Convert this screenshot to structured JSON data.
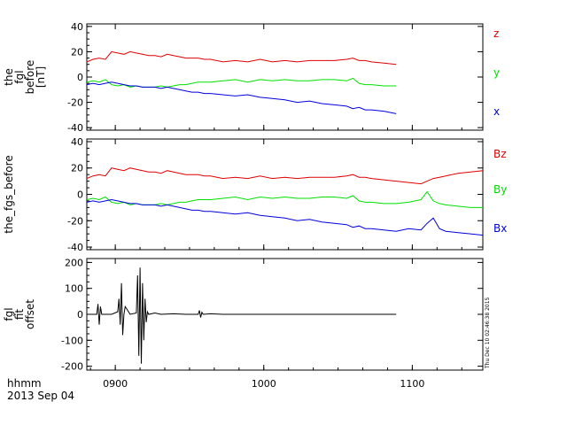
{
  "chart_data": [
    {
      "type": "line",
      "ytitle": [
        "the",
        "fgl",
        "before",
        "[nT]"
      ],
      "ylim": [
        -42,
        42
      ],
      "yticks": [
        40,
        20,
        0,
        -20,
        -40
      ],
      "series": [
        {
          "name": "z",
          "color": "#e00000",
          "x": [
            0,
            5,
            10,
            15,
            20,
            25,
            30,
            35,
            40,
            45,
            50,
            55,
            60,
            65,
            70,
            75,
            80,
            85,
            90,
            95,
            100,
            110,
            120,
            130,
            140,
            150,
            160,
            170,
            180,
            190,
            200,
            210,
            215,
            220,
            225,
            230,
            240,
            250
          ],
          "y": [
            12,
            14,
            15,
            14,
            20,
            19,
            18,
            20,
            19,
            18,
            17,
            17,
            16,
            18,
            17,
            16,
            15,
            15,
            15,
            14,
            14,
            12,
            13,
            12,
            14,
            12,
            13,
            12,
            13,
            13,
            13,
            14,
            15,
            13,
            13,
            12,
            11,
            10
          ]
        },
        {
          "name": "y",
          "color": "#00e000",
          "x": [
            0,
            5,
            10,
            15,
            20,
            25,
            30,
            35,
            40,
            45,
            50,
            55,
            60,
            65,
            70,
            75,
            80,
            85,
            90,
            95,
            100,
            110,
            120,
            130,
            140,
            150,
            160,
            170,
            180,
            190,
            200,
            210,
            215,
            220,
            225,
            230,
            240,
            250
          ],
          "y": [
            -4,
            -3,
            -4,
            -2,
            -6,
            -7,
            -6,
            -8,
            -7,
            -8,
            -8,
            -8,
            -7,
            -8,
            -7,
            -6,
            -6,
            -5,
            -4,
            -4,
            -4,
            -3,
            -2,
            -4,
            -2,
            -3,
            -2,
            -3,
            -3,
            -2,
            -2,
            -3,
            -1,
            -5,
            -6,
            -6,
            -7,
            -7
          ]
        },
        {
          "name": "x",
          "color": "#0000e0",
          "x": [
            0,
            5,
            10,
            15,
            20,
            25,
            30,
            35,
            40,
            45,
            50,
            55,
            60,
            65,
            70,
            75,
            80,
            85,
            90,
            95,
            100,
            110,
            120,
            130,
            140,
            150,
            160,
            170,
            180,
            190,
            200,
            210,
            215,
            220,
            225,
            230,
            240,
            250
          ],
          "y": [
            -6,
            -5,
            -6,
            -5,
            -4,
            -5,
            -6,
            -7,
            -7,
            -8,
            -8,
            -8,
            -9,
            -8,
            -9,
            -10,
            -11,
            -12,
            -12,
            -13,
            -13,
            -14,
            -15,
            -14,
            -16,
            -17,
            -18,
            -20,
            -19,
            -21,
            -22,
            -23,
            -25,
            -24,
            -26,
            -26,
            -27,
            -29
          ]
        }
      ]
    },
    {
      "type": "line",
      "ytitle": [
        "the_fgs_before"
      ],
      "ylim": [
        -42,
        42
      ],
      "yticks": [
        40,
        20,
        0,
        -20,
        -40
      ],
      "series": [
        {
          "name": "Bz",
          "color": "#e00000",
          "x": [
            0,
            5,
            10,
            15,
            20,
            25,
            30,
            35,
            40,
            45,
            50,
            55,
            60,
            65,
            70,
            75,
            80,
            85,
            90,
            95,
            100,
            110,
            120,
            130,
            140,
            150,
            160,
            170,
            180,
            190,
            200,
            210,
            215,
            220,
            225,
            230,
            240,
            250,
            260,
            270,
            275,
            280,
            285,
            290,
            300,
            310,
            320
          ],
          "y": [
            12,
            14,
            15,
            14,
            20,
            19,
            18,
            20,
            19,
            18,
            17,
            17,
            16,
            18,
            17,
            16,
            15,
            15,
            15,
            14,
            14,
            12,
            13,
            12,
            14,
            12,
            13,
            12,
            13,
            13,
            13,
            14,
            15,
            13,
            13,
            12,
            11,
            10,
            9,
            8,
            10,
            12,
            13,
            14,
            16,
            17,
            18
          ]
        },
        {
          "name": "By",
          "color": "#00e000",
          "x": [
            0,
            5,
            10,
            15,
            20,
            25,
            30,
            35,
            40,
            45,
            50,
            55,
            60,
            65,
            70,
            75,
            80,
            85,
            90,
            95,
            100,
            110,
            120,
            130,
            140,
            150,
            160,
            170,
            180,
            190,
            200,
            210,
            215,
            220,
            225,
            230,
            240,
            250,
            260,
            270,
            275,
            280,
            285,
            290,
            300,
            310,
            320
          ],
          "y": [
            -4,
            -3,
            -4,
            -2,
            -6,
            -7,
            -6,
            -8,
            -7,
            -8,
            -8,
            -8,
            -7,
            -8,
            -7,
            -6,
            -6,
            -5,
            -4,
            -4,
            -4,
            -3,
            -2,
            -4,
            -2,
            -3,
            -2,
            -3,
            -3,
            -2,
            -2,
            -3,
            -1,
            -5,
            -6,
            -6,
            -7,
            -7,
            -6,
            -4,
            2,
            -5,
            -7,
            -8,
            -9,
            -10,
            -10
          ]
        },
        {
          "name": "Bx",
          "color": "#0000e0",
          "x": [
            0,
            5,
            10,
            15,
            20,
            25,
            30,
            35,
            40,
            45,
            50,
            55,
            60,
            65,
            70,
            75,
            80,
            85,
            90,
            95,
            100,
            110,
            120,
            130,
            140,
            150,
            160,
            170,
            180,
            190,
            200,
            210,
            215,
            220,
            225,
            230,
            240,
            250,
            260,
            270,
            275,
            280,
            285,
            290,
            300,
            310,
            320
          ],
          "y": [
            -6,
            -5,
            -6,
            -5,
            -4,
            -5,
            -6,
            -7,
            -7,
            -8,
            -8,
            -8,
            -9,
            -8,
            -9,
            -10,
            -11,
            -12,
            -12,
            -13,
            -13,
            -14,
            -15,
            -14,
            -16,
            -17,
            -18,
            -20,
            -19,
            -21,
            -22,
            -23,
            -25,
            -24,
            -26,
            -26,
            -27,
            -28,
            -26,
            -27,
            -22,
            -18,
            -26,
            -28,
            -29,
            -30,
            -31
          ]
        }
      ]
    },
    {
      "type": "line",
      "ytitle": [
        "fgl",
        "fit",
        "offset"
      ],
      "ylim": [
        -215,
        215
      ],
      "yticks": [
        200,
        100,
        0,
        -100,
        -200
      ],
      "series": [
        {
          "color": "#000000",
          "x": [
            0,
            8,
            9,
            10,
            11,
            12,
            20,
            25,
            26,
            27,
            28,
            29,
            30,
            31,
            35,
            40,
            41,
            42,
            43,
            44,
            45,
            46,
            47,
            48,
            49,
            50,
            55,
            60,
            70,
            80,
            90,
            91,
            92,
            93,
            94,
            100,
            110,
            250
          ],
          "y": [
            0,
            0,
            40,
            -40,
            30,
            0,
            0,
            10,
            60,
            -40,
            120,
            -80,
            0,
            30,
            0,
            5,
            150,
            -160,
            180,
            -190,
            120,
            -100,
            60,
            -30,
            10,
            0,
            5,
            0,
            2,
            0,
            0,
            15,
            -12,
            8,
            0,
            2,
            0,
            0
          ]
        }
      ]
    }
  ],
  "xaxis": {
    "unit_label": "hhmm",
    "date_label": "2013 Sep 04",
    "ticks": [
      "0900",
      "1000",
      "1100"
    ]
  },
  "timestamp": "Thu Dec 10 02:46:38 2015"
}
